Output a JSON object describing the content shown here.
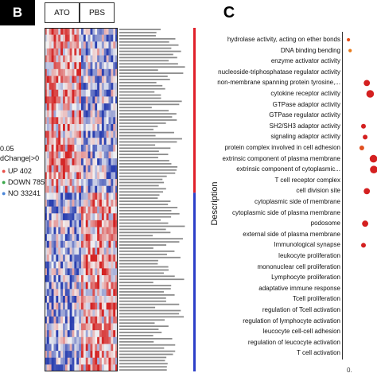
{
  "panels": {
    "b": "B",
    "c": "C"
  },
  "heatmap": {
    "groups": [
      "ATO",
      "PBS"
    ],
    "rows": 50,
    "cols": 32,
    "colors": {
      "high": "#d42424",
      "low": "#2a3fb0",
      "mid": "#f2f2f2"
    },
    "side_bar": {
      "up_color": "#e0202a",
      "down_color": "#2c3fc8"
    }
  },
  "volcano_legend": {
    "title_lines": [
      "0.05",
      "dChange|>0"
    ],
    "entries": [
      {
        "label": "UP",
        "value": "402",
        "color": "#e8504a"
      },
      {
        "label": "DOWN",
        "value": "785",
        "color": "#3aa84a"
      },
      {
        "label": "NO",
        "value": "33241",
        "color": "#4a86d8"
      }
    ]
  },
  "chart_data": {
    "type": "scatter",
    "ylabel": "Description",
    "x_tick_visible": "0.",
    "categories": [
      "hydrolase activity, acting on ether bonds",
      "DNA binding bending",
      "enzyme activator activity",
      "nucleoside-triphosphatase regulator activity",
      "non-membrane spanning protein tyrosine,...",
      "cytokine receptor activity",
      "GTPase adaptor activity",
      "GTPase regulator activity",
      "SH2/SH3 adaptor activity",
      "signaling adaptor activity",
      "protein complex involved in cell adhesion",
      "extrinsic component of plasma membrane",
      "extrinsic component of cytoplasmic...",
      "T cell receptor complex",
      "cell division site",
      "cytoplasmic side of membrane",
      "cytoplasmic side of plasma membrane",
      "podosome",
      "external side of plasma membrane",
      "Immunological synapse",
      "leukocyte proliferation",
      "mononuclear cell proliferation",
      "Lymphocyte proliferation",
      "adaptative immune response",
      "Tcell proliferation",
      "regulation of Tcell activation",
      "regulation of lymphocyte activation",
      "leucocyte cell-cell adhesion",
      "regulation of leucocyte activation",
      "T cell activation"
    ],
    "points": [
      {
        "category": "hydrolase activity, acting on ether bonds",
        "x": 0.005,
        "size": 1,
        "color": "#e8501a"
      },
      {
        "category": "DNA binding bending",
        "x": 0.01,
        "size": 1,
        "color": "#e87a1a"
      },
      {
        "category": "non-membrane spanning protein tyrosine,...",
        "x": 0.06,
        "size": 3,
        "color": "#d42020"
      },
      {
        "category": "cytokine receptor activity",
        "x": 0.07,
        "size": 4,
        "color": "#d42020"
      },
      {
        "category": "SH2/SH3 adaptor activity",
        "x": 0.05,
        "size": 2,
        "color": "#d42020"
      },
      {
        "category": "signaling adaptor activity",
        "x": 0.055,
        "size": 2,
        "color": "#d42020"
      },
      {
        "category": "protein complex involved in cell adhesion",
        "x": 0.045,
        "size": 2,
        "color": "#e05020"
      },
      {
        "category": "extrinsic component of plasma membrane",
        "x": 0.08,
        "size": 4,
        "color": "#d42020"
      },
      {
        "category": "extrinsic component of cytoplasmic...",
        "x": 0.085,
        "size": 4,
        "color": "#d42020"
      },
      {
        "category": "cell division site",
        "x": 0.06,
        "size": 3,
        "color": "#d42020"
      },
      {
        "category": "podosome",
        "x": 0.055,
        "size": 3,
        "color": "#d42020"
      },
      {
        "category": "Immunological synapse",
        "x": 0.05,
        "size": 2,
        "color": "#d42020"
      }
    ]
  }
}
